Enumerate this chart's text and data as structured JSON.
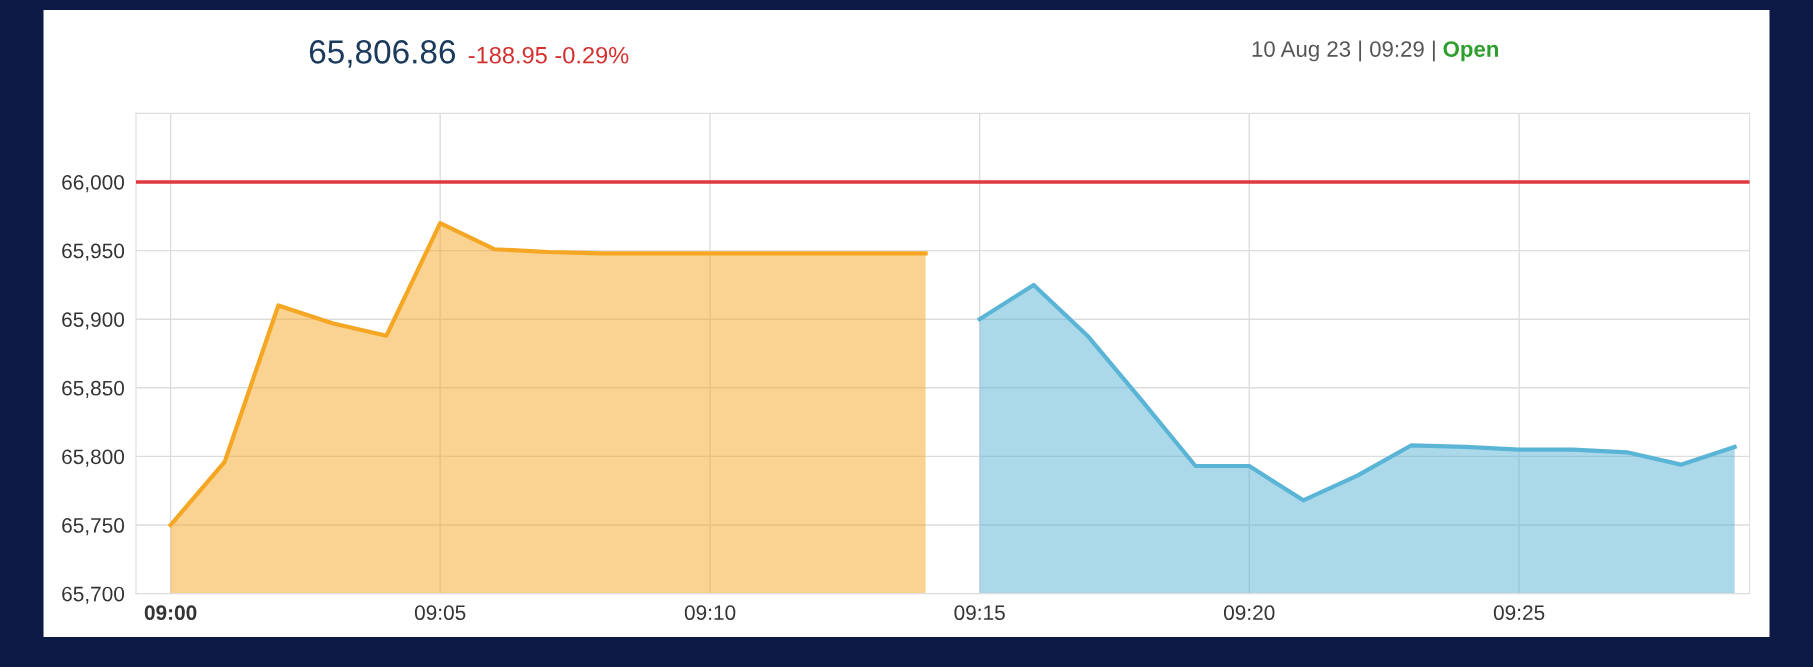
{
  "chart_data": {
    "type": "area",
    "title": "65,806.86",
    "subtitle": "-188.95 -0.29%",
    "annotations": [
      "10 Aug 23 | 09:29 | ",
      "Open"
    ],
    "series": [
      {
        "color": "#f5a623",
        "x": [
          9.0,
          9.0167,
          9.0333,
          9.05,
          9.0667,
          9.0833,
          9.1,
          9.1167,
          9.1333,
          9.15,
          9.1667,
          9.1833,
          9.2,
          9.2167,
          9.2333
        ],
        "values": [
          65750,
          65796,
          65910,
          65897,
          65888,
          65970,
          65951,
          65949,
          65948,
          65948,
          65948,
          65948,
          65948,
          65948,
          65948
        ]
      },
      {
        "color": "#5ab4d6",
        "x": [
          9.25,
          9.2667,
          9.2833,
          9.3,
          9.3167,
          9.3333,
          9.35,
          9.3667,
          9.3833,
          9.4,
          9.4167,
          9.4333,
          9.45,
          9.4667,
          9.4833
        ],
        "values": [
          65900,
          65925,
          65888,
          65841,
          65793,
          65793,
          65768,
          65786,
          65808,
          65807,
          65805,
          65805,
          65803,
          65794,
          65807
        ]
      }
    ],
    "ref_lines": [
      {
        "axis": "y",
        "value": 66000,
        "color": "#e0383e"
      }
    ],
    "xlim": [
      8.9893,
      9.4879
    ],
    "ylim": [
      65700,
      66050
    ],
    "xticks": [
      {
        "value": 9.0,
        "label": "09:00"
      },
      {
        "value": 9.0833,
        "label": "09:05"
      },
      {
        "value": 9.1667,
        "label": "09:10"
      },
      {
        "value": 9.25,
        "label": "09:15"
      },
      {
        "value": 9.3333,
        "label": "09:20"
      },
      {
        "value": 9.4167,
        "label": "09:25"
      }
    ],
    "yticks": [
      {
        "value": 65700,
        "label": "65,700"
      },
      {
        "value": 65750,
        "label": "65,750"
      },
      {
        "value": 65800,
        "label": "65,800"
      },
      {
        "value": 65850,
        "label": "65,850"
      },
      {
        "value": 65900,
        "label": "65,900"
      },
      {
        "value": 65950,
        "label": "65,950"
      },
      {
        "value": 66000,
        "label": "66,000"
      }
    ],
    "grid": true
  }
}
